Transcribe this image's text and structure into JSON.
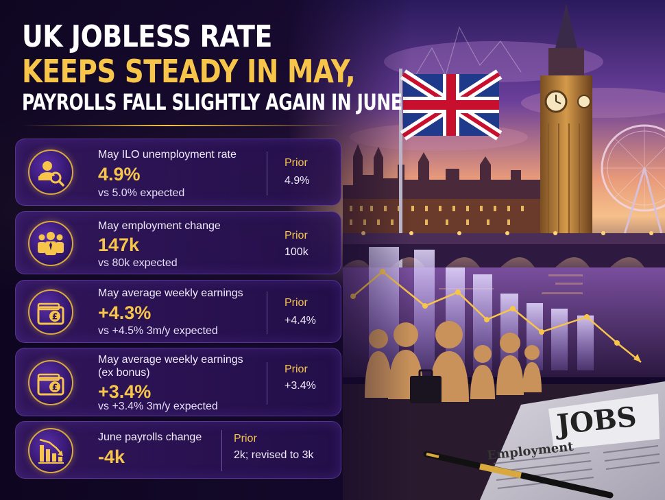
{
  "headline": {
    "line1": "UK JOBLESS RATE",
    "line2": "KEEPS STEADY IN MAY,",
    "line3": "PAYROLLS FALL SLIGHTLY AGAIN IN JUNE"
  },
  "colors": {
    "accent_gold": "#f7c54a",
    "background": "#14082a",
    "card": "#341860"
  },
  "cards": [
    {
      "icon": "unemployment-search-icon",
      "label": "May ILO unemployment rate",
      "value": "4.9%",
      "sub": "vs 5.0% expected",
      "prior_label": "Prior",
      "prior_value": "4.9%"
    },
    {
      "icon": "people-group-icon",
      "label": "May employment change",
      "value": "147k",
      "sub": "vs 80k expected",
      "prior_label": "Prior",
      "prior_value": "100k"
    },
    {
      "icon": "wallet-pound-icon",
      "label": "May average weekly earnings",
      "value": "+4.3%",
      "sub": "vs +4.5% 3m/y expected",
      "prior_label": "Prior",
      "prior_value": "+4.4%"
    },
    {
      "icon": "wallet-pound-icon",
      "label": "May average weekly earnings",
      "label2": "(ex bonus)",
      "value": "+3.4%",
      "sub": "vs +3.4% 3m/y expected",
      "prior_label": "Prior",
      "prior_value": "+3.4%"
    },
    {
      "icon": "falling-bar-chart-icon",
      "label": "June payrolls change",
      "value": "-4k",
      "prior_label": "Prior",
      "prior_value": "2k; revised to 3k"
    }
  ],
  "scene": {
    "newspaper_headline": "JOBS",
    "newspaper_section": "Employment"
  }
}
